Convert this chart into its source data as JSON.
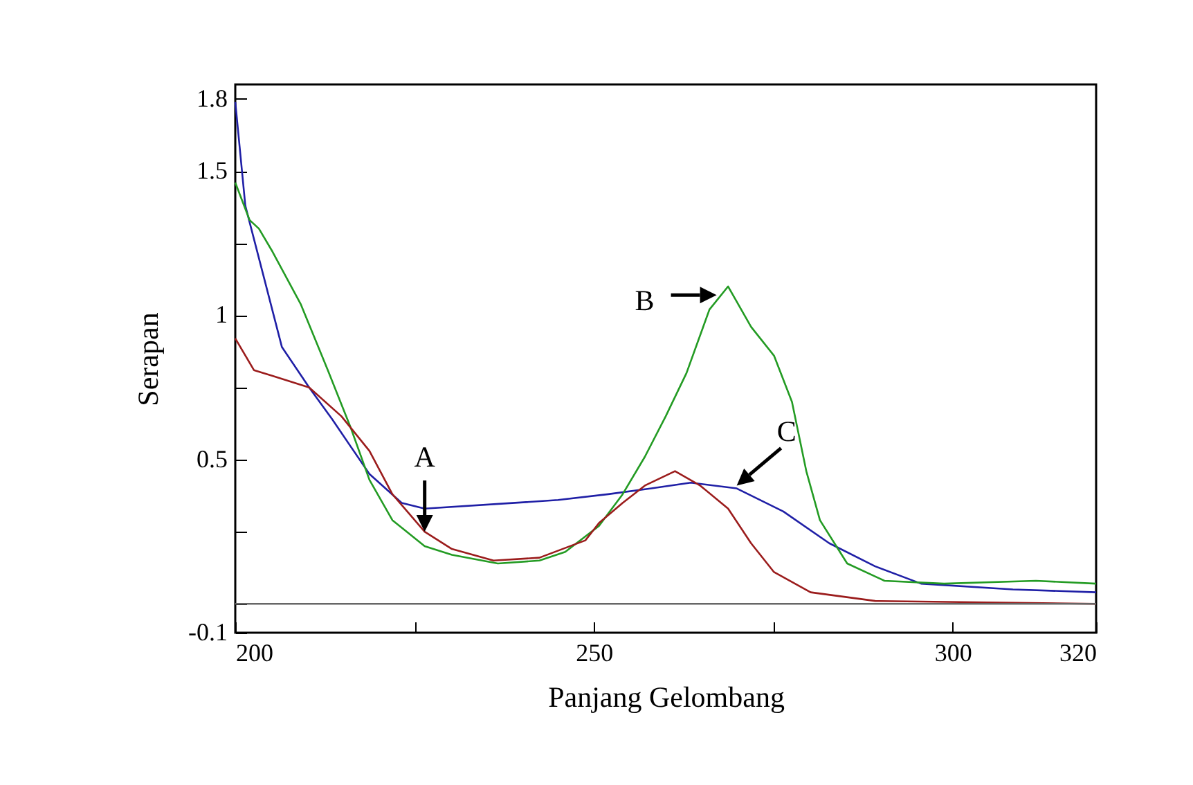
{
  "chart_data": {
    "type": "line",
    "xlabel": "Panjang Gelombang",
    "ylabel": "Serapan",
    "xlim": [
      200,
      320
    ],
    "ylim": [
      -0.1,
      1.8
    ],
    "xticks": [
      200,
      {
        "value": 225,
        "label": null
      },
      250,
      {
        "value": 275,
        "label": null
      },
      300,
      320
    ],
    "yticks": [
      -0.1,
      {
        "value": 0,
        "label": null
      },
      {
        "value": 0.25,
        "label": null
      },
      0.5,
      {
        "value": 0.75,
        "label": null
      },
      1,
      {
        "value": 1.25,
        "label": null
      },
      1.5,
      {
        "value": 1.75,
        "label": "1.8"
      }
    ],
    "grid": false,
    "legend": false,
    "ref_lines": [
      {
        "axis": "y",
        "value": 0,
        "color": "#666666"
      }
    ],
    "annotations": [
      {
        "text": "A",
        "x": 226.4,
        "y": 0.25
      },
      {
        "text": "B",
        "x": 267.1,
        "y": 1.07
      },
      {
        "text": "C",
        "x": 269.9,
        "y": 0.41
      }
    ],
    "series": [
      {
        "color": "#1f1fa6",
        "x": [
          200,
          201.4,
          203.9,
          206.5,
          210.3,
          213.5,
          218.7,
          223.2,
          226.4,
          239,
          245,
          252,
          258,
          263.5,
          269.9,
          276.4,
          282.8,
          289.2,
          295.6,
          308.4,
          320
        ],
        "values": [
          1.74,
          1.38,
          1.14,
          0.89,
          0.75,
          0.64,
          0.45,
          0.35,
          0.33,
          0.35,
          0.36,
          0.38,
          0.4,
          0.42,
          0.4,
          0.32,
          0.21,
          0.13,
          0.07,
          0.05,
          0.04
        ]
      },
      {
        "color": "#239b23",
        "x": [
          200,
          202,
          203.3,
          205.2,
          209.1,
          212.9,
          216.1,
          218.7,
          221.9,
          226.4,
          230.2,
          236.6,
          242.4,
          246,
          250.7,
          254,
          257.1,
          260,
          262.9,
          266.1,
          268.7,
          271.9,
          275.1,
          277.6,
          279.6,
          281.5,
          285.3,
          290.5,
          298.8,
          311.6,
          320
        ],
        "values": [
          1.46,
          1.33,
          1.3,
          1.22,
          1.04,
          0.81,
          0.61,
          0.43,
          0.29,
          0.2,
          0.17,
          0.14,
          0.15,
          0.18,
          0.27,
          0.38,
          0.51,
          0.65,
          0.8,
          1.02,
          1.1,
          0.96,
          0.86,
          0.7,
          0.46,
          0.29,
          0.14,
          0.08,
          0.07,
          0.08,
          0.07
        ]
      },
      {
        "color": "#9b1c1c",
        "x": [
          200,
          202.6,
          205.2,
          210.3,
          214.8,
          218.7,
          221.9,
          226.4,
          230.2,
          236,
          242.4,
          248.8,
          250.7,
          254,
          257.1,
          261.3,
          264.8,
          268.7,
          271.9,
          275.1,
          280.2,
          289.2,
          320
        ],
        "values": [
          0.92,
          0.81,
          0.79,
          0.75,
          0.65,
          0.53,
          0.38,
          0.25,
          0.19,
          0.15,
          0.16,
          0.22,
          0.28,
          0.35,
          0.41,
          0.46,
          0.41,
          0.33,
          0.21,
          0.11,
          0.04,
          0.01,
          0.0
        ]
      }
    ]
  }
}
